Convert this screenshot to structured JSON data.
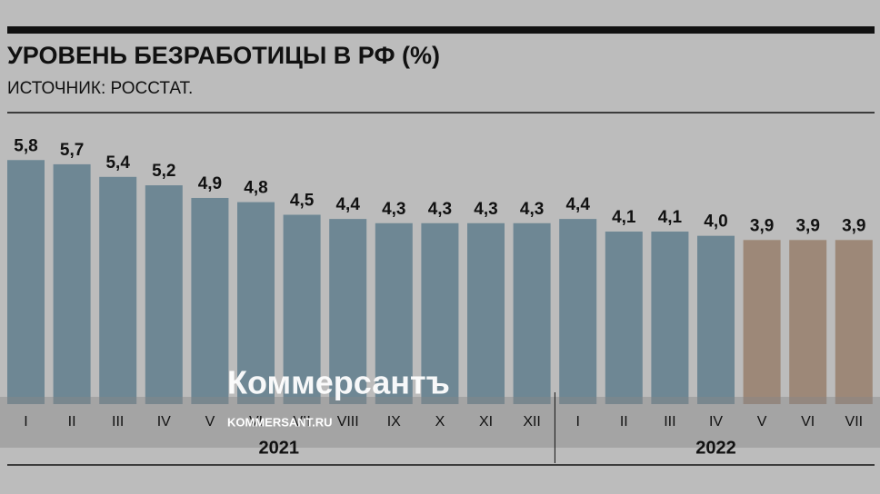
{
  "chart_data": {
    "type": "bar",
    "title": "УРОВЕНЬ БЕЗРАБОТИЦЫ В РФ (%)",
    "subtitle": "ИСТОЧНИК: РОССТАТ.",
    "categories": [
      "I",
      "II",
      "III",
      "IV",
      "V",
      "VI",
      "VII",
      "VIII",
      "IX",
      "X",
      "XI",
      "XII",
      "I",
      "II",
      "III",
      "IV",
      "V",
      "VI",
      "VII"
    ],
    "values": [
      5.8,
      5.7,
      5.4,
      5.2,
      4.9,
      4.8,
      4.5,
      4.4,
      4.3,
      4.3,
      4.3,
      4.3,
      4.4,
      4.1,
      4.1,
      4.0,
      3.9,
      3.9,
      3.9
    ],
    "value_labels": [
      "5,8",
      "5,7",
      "5,4",
      "5,2",
      "4,9",
      "4,8",
      "4,5",
      "4,4",
      "4,3",
      "4,3",
      "4,3",
      "4,3",
      "4,4",
      "4,1",
      "4,1",
      "4,0",
      "3,9",
      "3,9",
      "3,9"
    ],
    "colors": [
      "#6e8794",
      "#6e8794",
      "#6e8794",
      "#6e8794",
      "#6e8794",
      "#6e8794",
      "#6e8794",
      "#6e8794",
      "#6e8794",
      "#6e8794",
      "#6e8794",
      "#6e8794",
      "#6e8794",
      "#6e8794",
      "#6e8794",
      "#6e8794",
      "#9d8878",
      "#9d8878",
      "#9d8878"
    ],
    "groups": [
      {
        "label": "2021",
        "count": 12
      },
      {
        "label": "2022",
        "count": 7
      }
    ],
    "ylim": [
      0,
      6
    ],
    "watermark": "Коммерсантъ",
    "watermark_url": "KOMMERSANT.RU"
  }
}
